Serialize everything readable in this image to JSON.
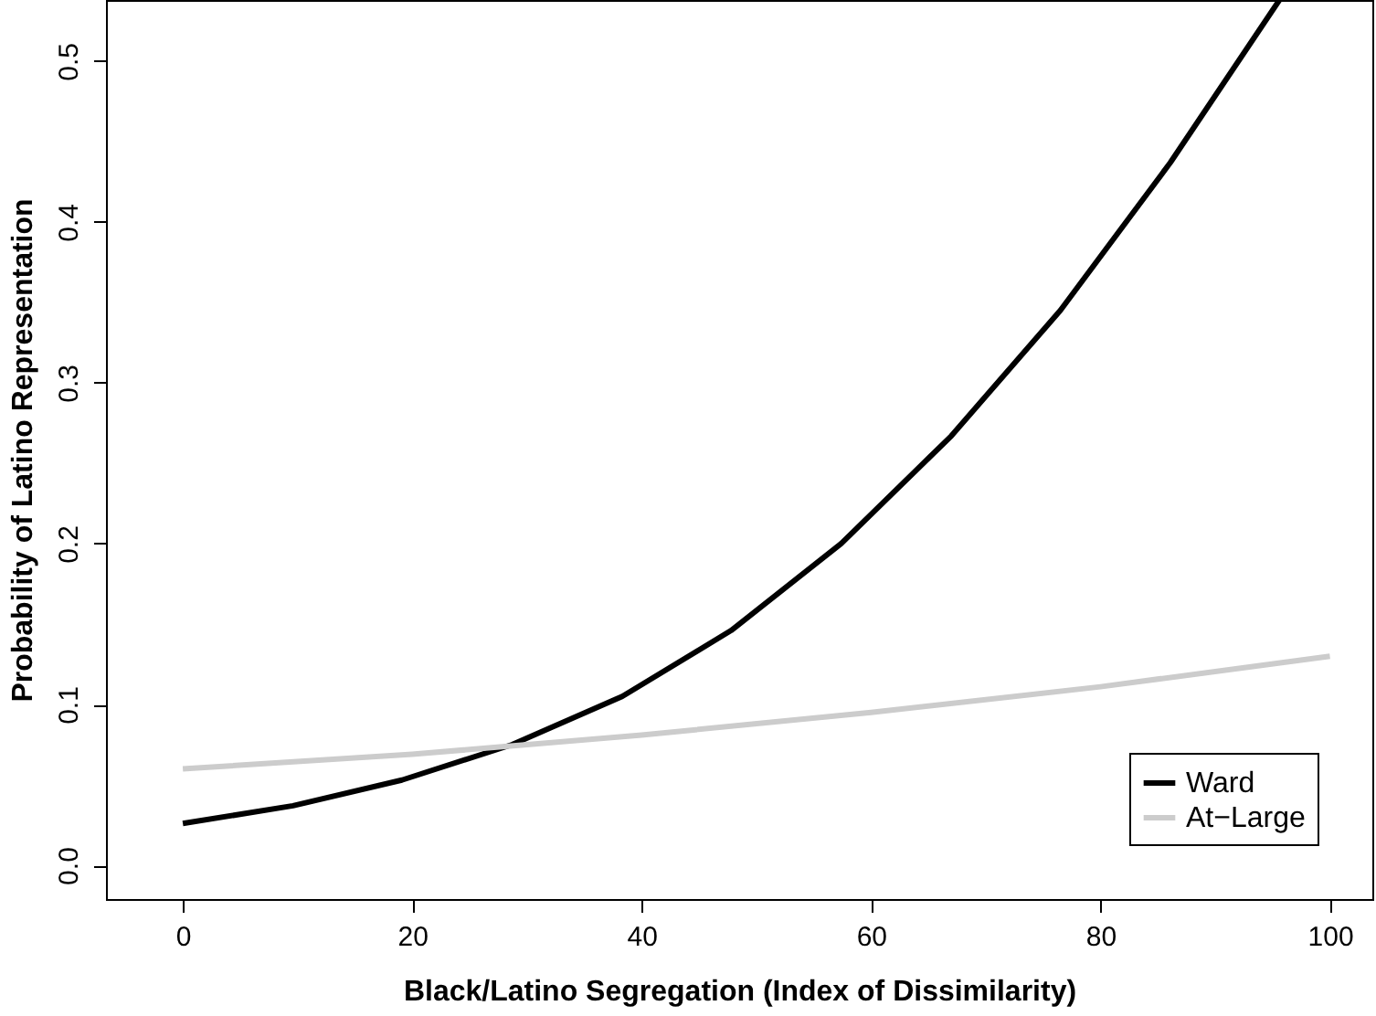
{
  "chart_data": {
    "type": "line",
    "xlabel": "Black/Latino Segregation (Index of Dissimilarity)",
    "ylabel": "Probability of Latino Representation",
    "xlim": [
      -6.7,
      103.7
    ],
    "ylim": [
      -0.021,
      0.538
    ],
    "xticks": [
      0,
      20,
      40,
      60,
      80,
      100
    ],
    "yticks": [
      {
        "value": 0,
        "label": "0.0"
      },
      0.1,
      0.2,
      0.3,
      0.4,
      0.5
    ],
    "grid": false,
    "legend": "bottom right",
    "series": [
      {
        "name": "Ward",
        "color": "#000000",
        "x": [
          0,
          9.6,
          19.1,
          28.7,
          38.3,
          47.8,
          57.4,
          67,
          76.5,
          86.1,
          95.6
        ],
        "values": [
          0.026,
          0.037,
          0.053,
          0.075,
          0.105,
          0.146,
          0.2,
          0.267,
          0.345,
          0.437,
          0.538
        ]
      },
      {
        "name": "At−Large",
        "color": "#cccccc",
        "x": [
          0,
          20,
          40,
          60,
          80,
          100
        ],
        "values": [
          0.06,
          0.069,
          0.081,
          0.095,
          0.111,
          0.13
        ]
      }
    ]
  }
}
